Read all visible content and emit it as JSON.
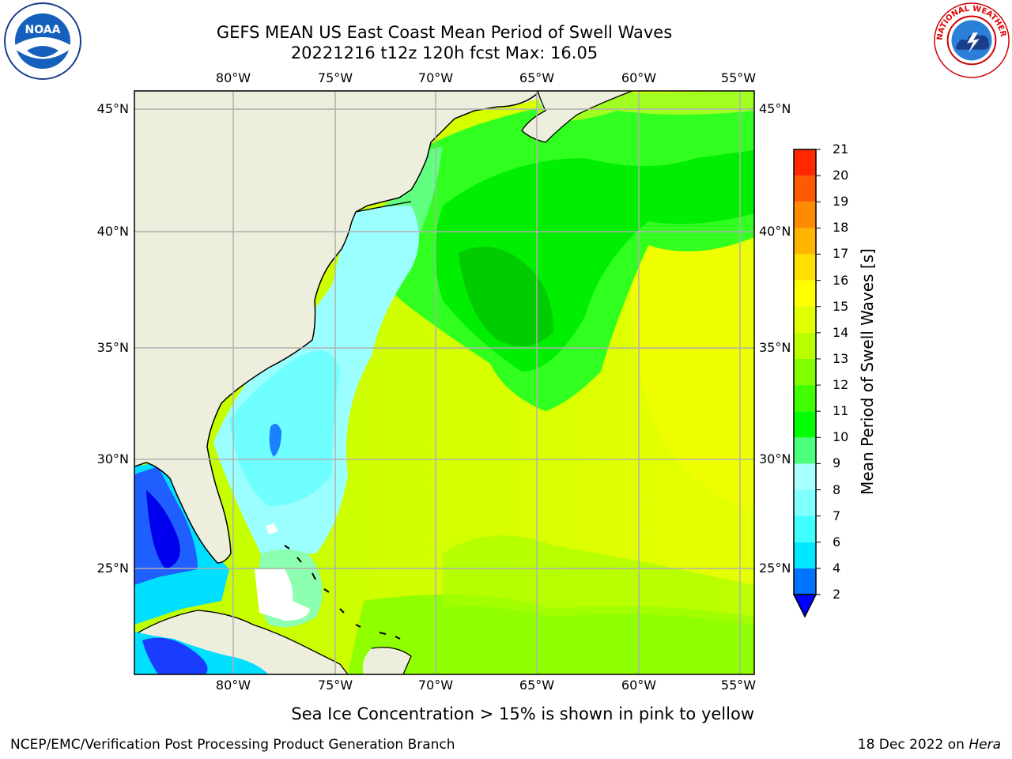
{
  "title": {
    "line1": "GEFS MEAN US East Coast Mean Period of Swell Waves",
    "line2": "20221216 t12z 120h fcst   Max: 16.05"
  },
  "logos": {
    "left": "noaa-logo",
    "right": "nws-logo",
    "left_text": "NOAA",
    "right_text": "NATIONAL WEATHER SERVICE"
  },
  "longitude_labels": [
    "80°W",
    "75°W",
    "70°W",
    "65°W",
    "60°W",
    "55°W"
  ],
  "latitude_labels": [
    "45°N",
    "40°N",
    "35°N",
    "30°N",
    "25°N"
  ],
  "colorbar": {
    "label": "Mean Period of Swell Waves [s]",
    "ticks": [
      "2",
      "4",
      "6",
      "7",
      "8",
      "9",
      "10",
      "11",
      "12",
      "13",
      "14",
      "15",
      "16",
      "17",
      "18",
      "19",
      "20",
      "21"
    ],
    "colors": [
      "#0074ff",
      "#00e8ff",
      "#40ffff",
      "#80ffff",
      "#a8ffff",
      "#4cff7c",
      "#00ff00",
      "#40ff00",
      "#80ff00",
      "#b8ff00",
      "#e0ff00",
      "#ffff00",
      "#ffe000",
      "#ffb400",
      "#ff8c00",
      "#ff5a00",
      "#ff2800"
    ],
    "under_color": "#0000ff"
  },
  "note": "Sea Ice Concentration > 15% is shown in pink to yellow",
  "footer": {
    "left": "NCEP/EMC/Verification Post Processing Product Generation Branch",
    "right_date": "18 Dec 2022 on ",
    "right_machine": "Hera"
  },
  "colors": {
    "land": "#eeeedd",
    "grid": "#b0b0b0"
  }
}
